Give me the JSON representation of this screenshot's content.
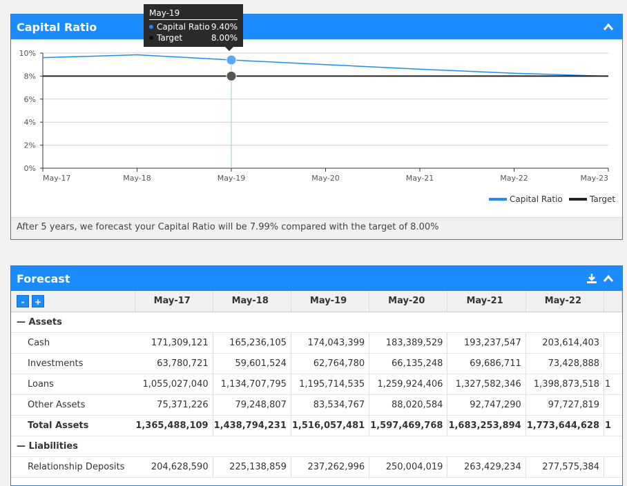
{
  "capital_ratio": {
    "title": "Capital Ratio",
    "note": "After 5 years, we forecast your Capital Ratio will be 7.99% compared with the target of 8.00%",
    "tooltip": {
      "title": "May-19",
      "rows": [
        {
          "name": "Capital Ratio",
          "value": "9.40%"
        },
        {
          "name": "Target",
          "value": "8.00%"
        }
      ]
    }
  },
  "chart_data": {
    "type": "line",
    "categories": [
      "May-17",
      "May-18",
      "May-19",
      "May-20",
      "May-21",
      "May-22",
      "May-23"
    ],
    "ylim": [
      0,
      10
    ],
    "yticks": [
      "0%",
      "2%",
      "4%",
      "6%",
      "8%",
      "10%"
    ],
    "grid": true,
    "legend_position": "bottom-right",
    "series": [
      {
        "name": "Capital Ratio",
        "color": "#1a8cff",
        "values": [
          9.6,
          9.85,
          9.4,
          9.0,
          8.6,
          8.25,
          7.99
        ]
      },
      {
        "name": "Target",
        "color": "#222222",
        "values": [
          8.0,
          8.0,
          8.0,
          8.0,
          8.0,
          8.0,
          8.0
        ]
      }
    ],
    "highlight_index": 2
  },
  "forecast": {
    "title": "Forecast",
    "collapse_label": "-",
    "expand_label": "+",
    "columns": [
      "May-17",
      "May-18",
      "May-19",
      "May-20",
      "May-21",
      "May-22"
    ],
    "sections": [
      {
        "label": "Assets",
        "rows": [
          {
            "label": "Cash",
            "values": [
              "171,309,121",
              "165,236,105",
              "174,043,399",
              "183,389,529",
              "193,237,547",
              "203,614,403"
            ],
            "total": false
          },
          {
            "label": "Investments",
            "values": [
              "63,780,721",
              "59,601,524",
              "62,764,780",
              "66,135,248",
              "69,686,711",
              "73,428,888"
            ],
            "total": false
          },
          {
            "label": "Loans",
            "values": [
              "1,055,027,040",
              "1,134,707,795",
              "1,195,714,535",
              "1,259,924,406",
              "1,327,582,346",
              "1,398,873,518"
            ],
            "total": false
          },
          {
            "label": "Other Assets",
            "values": [
              "75,371,226",
              "79,248,807",
              "83,534,767",
              "88,020,584",
              "92,747,290",
              "97,727,819"
            ],
            "total": false
          },
          {
            "label": "Total Assets",
            "values": [
              "1,365,488,109",
              "1,438,794,231",
              "1,516,057,481",
              "1,597,469,768",
              "1,683,253,894",
              "1,773,644,628"
            ],
            "total": true
          }
        ]
      },
      {
        "label": "Liabilities",
        "rows": [
          {
            "label": "Relationship Deposits",
            "values": [
              "204,628,590",
              "225,138,859",
              "237,262,996",
              "250,004,019",
              "263,429,234",
              "277,575,384"
            ],
            "total": false
          }
        ]
      }
    ]
  }
}
